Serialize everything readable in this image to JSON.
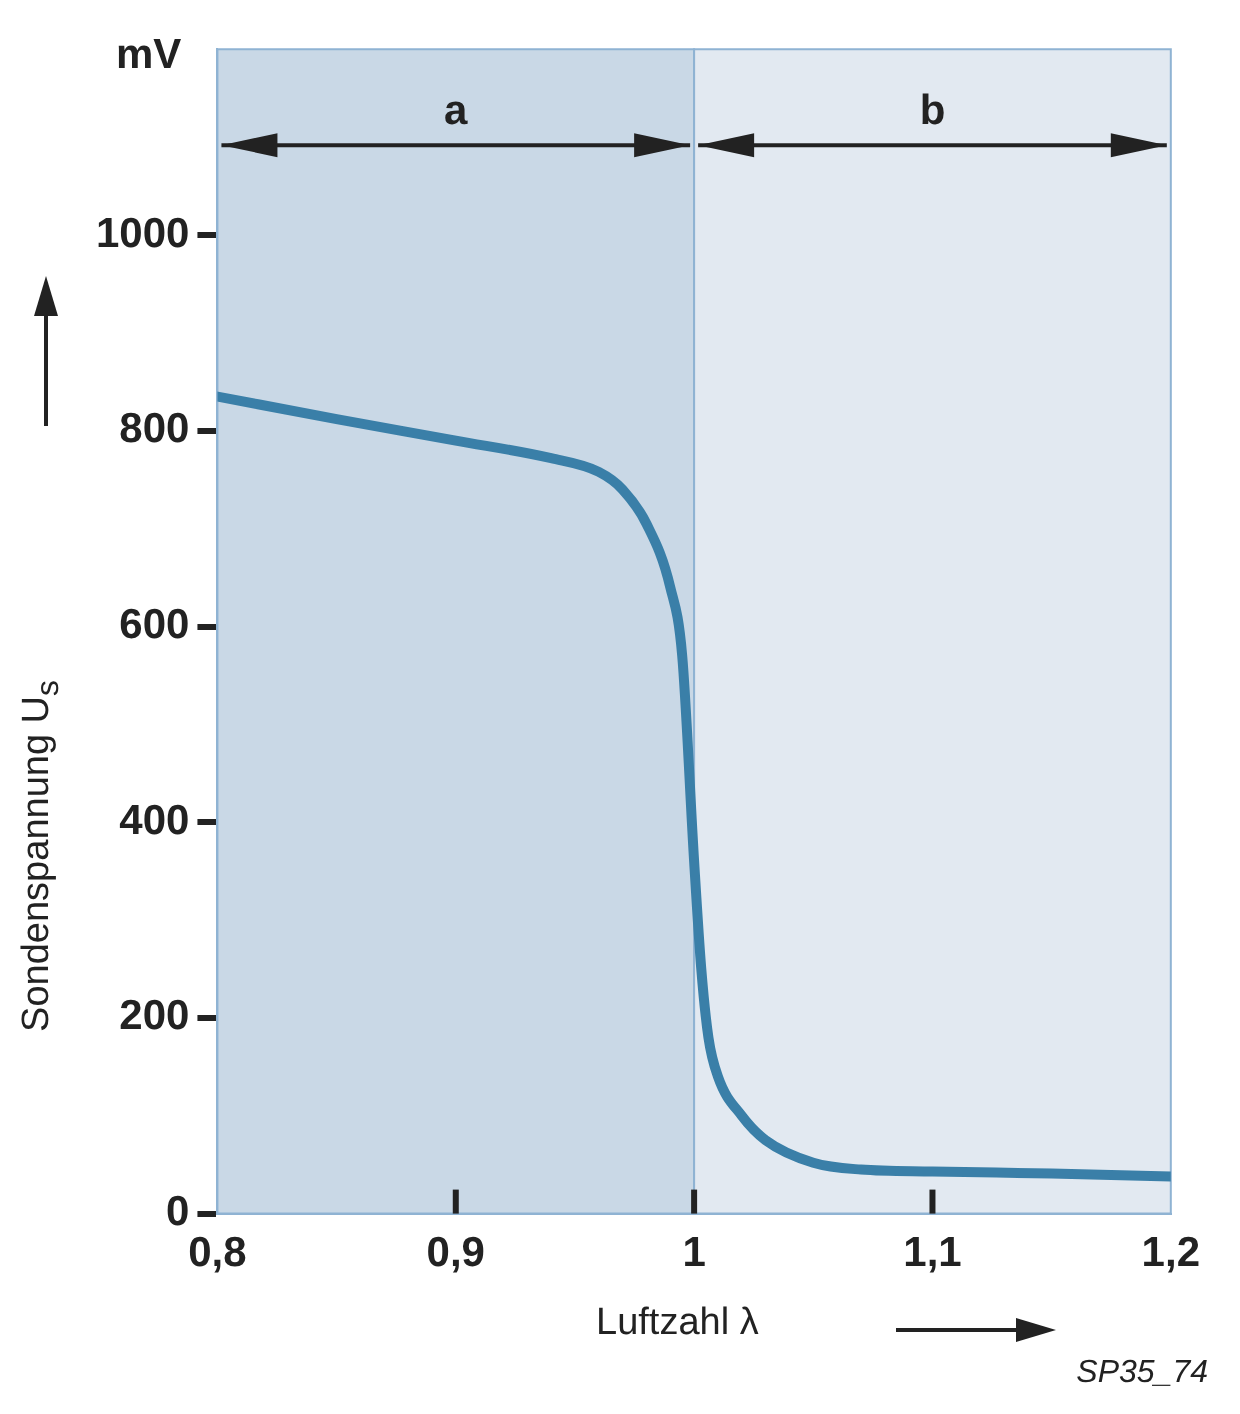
{
  "chart_data": {
    "type": "line",
    "xlabel": "Luftzahl λ",
    "ylabel": "Sondenspannung U$_{s}$",
    "annotations": [
      "mV",
      "SP35_74"
    ],
    "x": [
      0.8,
      0.85,
      0.9,
      0.94,
      0.96,
      0.97,
      0.98,
      0.99,
      0.995,
      1.0,
      1.003,
      1.006,
      1.01,
      1.02,
      1.03,
      1.05,
      1.07,
      1.1,
      1.15,
      1.2
    ],
    "series": [
      {
        "color": "#3a7fa8",
        "values": [
          835,
          812,
          790,
          772,
          758,
          740,
          705,
          640,
          570,
          360,
          250,
          180,
          140,
          100,
          75,
          52,
          45,
          43,
          41,
          38
        ]
      }
    ],
    "xlim": [
      0.8,
      1.2
    ],
    "ylim": [
      0,
      1190
    ],
    "xticks": [
      {
        "value": 0.8,
        "label": "0,8"
      },
      {
        "value": 0.9,
        "label": "0,9"
      },
      1,
      {
        "value": 1.1,
        "label": "1,1"
      },
      {
        "value": 1.2,
        "label": "1,2"
      }
    ],
    "yticks": [
      0,
      200,
      400,
      600,
      800,
      1000
    ],
    "bands": [
      {
        "axis": "x",
        "from": 0.8,
        "to": 1.0,
        "label": "a",
        "color": "#c9d8e6"
      },
      {
        "axis": "x",
        "from": 1.0,
        "to": 1.2,
        "label": "b",
        "color": "#e2e9f1"
      }
    ],
    "grid": false,
    "legend": false,
    "marker": "none",
    "line_style": "solid"
  }
}
